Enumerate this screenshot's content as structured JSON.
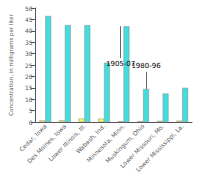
{
  "chart_data": {
    "type": "bar",
    "categories": [
      "Cedar, Iowa",
      "Des Moines, Iowa",
      "Lower Illinois, Ill.",
      "Wabash, Ind.",
      "Minnesota, Minn.",
      "Muskingum, Ohio",
      "Lower Missouri, Mo.",
      "Lower Mississippi, La."
    ],
    "series": [
      {
        "name": "1905-07",
        "color": "#ffff55",
        "values": [
          0.7,
          0.75,
          1.5,
          1.45,
          0.35,
          0.38,
          0.5,
          0.6
        ]
      },
      {
        "name": "1980-96",
        "color": "#44dddd",
        "values": [
          46.5,
          42.5,
          42.5,
          26.0,
          42.0,
          14.5,
          12.5,
          15.0
        ]
      }
    ],
    "ylabel": "Concentration, in milligrams per liter",
    "ylim": [
      0,
      50
    ],
    "yticks": [
      0,
      5,
      10,
      15,
      20,
      25,
      30,
      35,
      40,
      45,
      50
    ],
    "grid": false,
    "annotations": [
      {
        "text": "1905-07",
        "series": "1905-07",
        "category": "Minnesota, Minn.",
        "y": 28.0,
        "arrow_y": 42.0
      },
      {
        "text": "1980-96",
        "series": "1980-96",
        "category": "Muskingum, Ohio",
        "y": 22.0,
        "arrow_y": 14.5
      }
    ]
  }
}
